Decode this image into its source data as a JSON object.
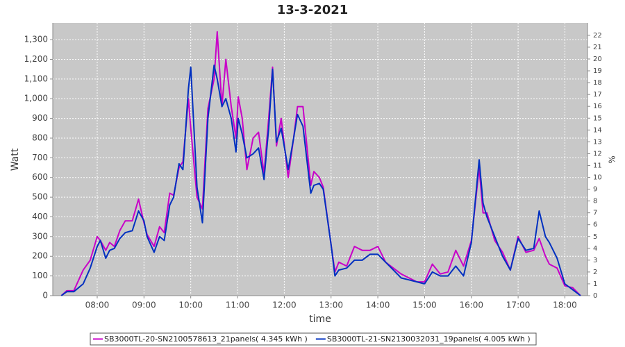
{
  "chart_data": {
    "type": "line",
    "title": "13-3-2021",
    "xlabel": "time",
    "ylabel": "Watt",
    "y2label": "%",
    "x": [
      "07:14",
      "07:21",
      "07:30",
      "07:42",
      "07:51",
      "08:00",
      "08:04",
      "08:11",
      "08:16",
      "08:22",
      "08:29",
      "08:36",
      "08:45",
      "08:53",
      "09:00",
      "09:04",
      "09:13",
      "09:20",
      "09:26",
      "09:33",
      "09:38",
      "09:45",
      "09:50",
      "09:57",
      "10:00",
      "10:08",
      "10:15",
      "10:22",
      "10:30",
      "10:34",
      "10:40",
      "10:45",
      "10:52",
      "10:58",
      "11:01",
      "11:06",
      "11:12",
      "11:20",
      "11:27",
      "11:34",
      "11:40",
      "11:45",
      "11:50",
      "11:56",
      "12:05",
      "12:12",
      "12:17",
      "12:24",
      "12:34",
      "12:38",
      "12:45",
      "12:50",
      "13:00",
      "13:05",
      "13:10",
      "13:20",
      "13:30",
      "13:40",
      "13:50",
      "14:00",
      "14:10",
      "14:20",
      "14:30",
      "14:40",
      "14:50",
      "15:00",
      "15:10",
      "15:20",
      "15:30",
      "15:40",
      "15:50",
      "16:00",
      "16:10",
      "16:15",
      "16:20",
      "16:30",
      "16:40",
      "16:50",
      "17:00",
      "17:10",
      "17:20",
      "17:27",
      "17:35",
      "17:40",
      "17:50",
      "18:00",
      "18:10",
      "18:20"
    ],
    "series": [
      {
        "name": "SB3000TL-20-SN2100578613_21panels( 4.345 kWh )",
        "color": "#c800c8",
        "values": [
          0,
          25,
          25,
          130,
          180,
          300,
          280,
          230,
          270,
          250,
          330,
          380,
          380,
          490,
          370,
          310,
          250,
          350,
          320,
          520,
          510,
          650,
          680,
          1000,
          850,
          500,
          440,
          950,
          1100,
          1340,
          960,
          1200,
          960,
          800,
          1010,
          900,
          640,
          800,
          830,
          620,
          900,
          1160,
          760,
          900,
          600,
          800,
          960,
          960,
          560,
          630,
          600,
          550,
          260,
          120,
          170,
          150,
          250,
          230,
          230,
          250,
          170,
          140,
          110,
          90,
          70,
          70,
          160,
          110,
          120,
          230,
          150,
          280,
          650,
          420,
          420,
          280,
          220,
          130,
          300,
          220,
          230,
          290,
          200,
          160,
          140,
          50,
          40,
          0
        ]
      },
      {
        "name": "SB3000TL-21-SN2130032031_19panels( 4.005 kWh )",
        "color": "#0030c0",
        "values": [
          0,
          20,
          20,
          60,
          140,
          250,
          280,
          190,
          230,
          240,
          290,
          320,
          330,
          430,
          380,
          300,
          220,
          300,
          280,
          460,
          500,
          670,
          640,
          1050,
          1160,
          550,
          370,
          900,
          1170,
          1100,
          960,
          1000,
          900,
          730,
          900,
          820,
          700,
          720,
          750,
          590,
          850,
          1150,
          780,
          850,
          640,
          800,
          920,
          860,
          520,
          560,
          570,
          540,
          260,
          100,
          130,
          140,
          180,
          180,
          210,
          210,
          170,
          130,
          90,
          80,
          70,
          60,
          120,
          100,
          100,
          150,
          100,
          270,
          690,
          470,
          400,
          300,
          200,
          130,
          290,
          230,
          240,
          430,
          300,
          270,
          190,
          60,
          30,
          0
        ]
      }
    ],
    "xlim": [
      "07:03",
      "18:29"
    ],
    "xticks": [
      "08:00",
      "09:00",
      "10:00",
      "11:00",
      "12:00",
      "13:00",
      "14:00",
      "15:00",
      "16:00",
      "17:00",
      "18:00"
    ],
    "ylim": [
      0,
      1385
    ],
    "yticks": [
      0,
      100,
      200,
      300,
      400,
      500,
      600,
      700,
      800,
      900,
      {
        "value": 1000,
        "label": "1,000"
      },
      {
        "value": 1100,
        "label": "1,100"
      },
      {
        "value": 1200,
        "label": "1,200"
      },
      {
        "value": 1300,
        "label": "1,300"
      }
    ],
    "y2lim": [
      0,
      23.05
    ],
    "y2ticks": [
      0,
      1,
      2,
      3,
      4,
      5,
      6,
      7,
      8,
      9,
      10,
      11,
      12,
      13,
      14,
      15,
      16,
      17,
      18,
      19,
      20,
      21,
      22
    ],
    "grid": true
  }
}
